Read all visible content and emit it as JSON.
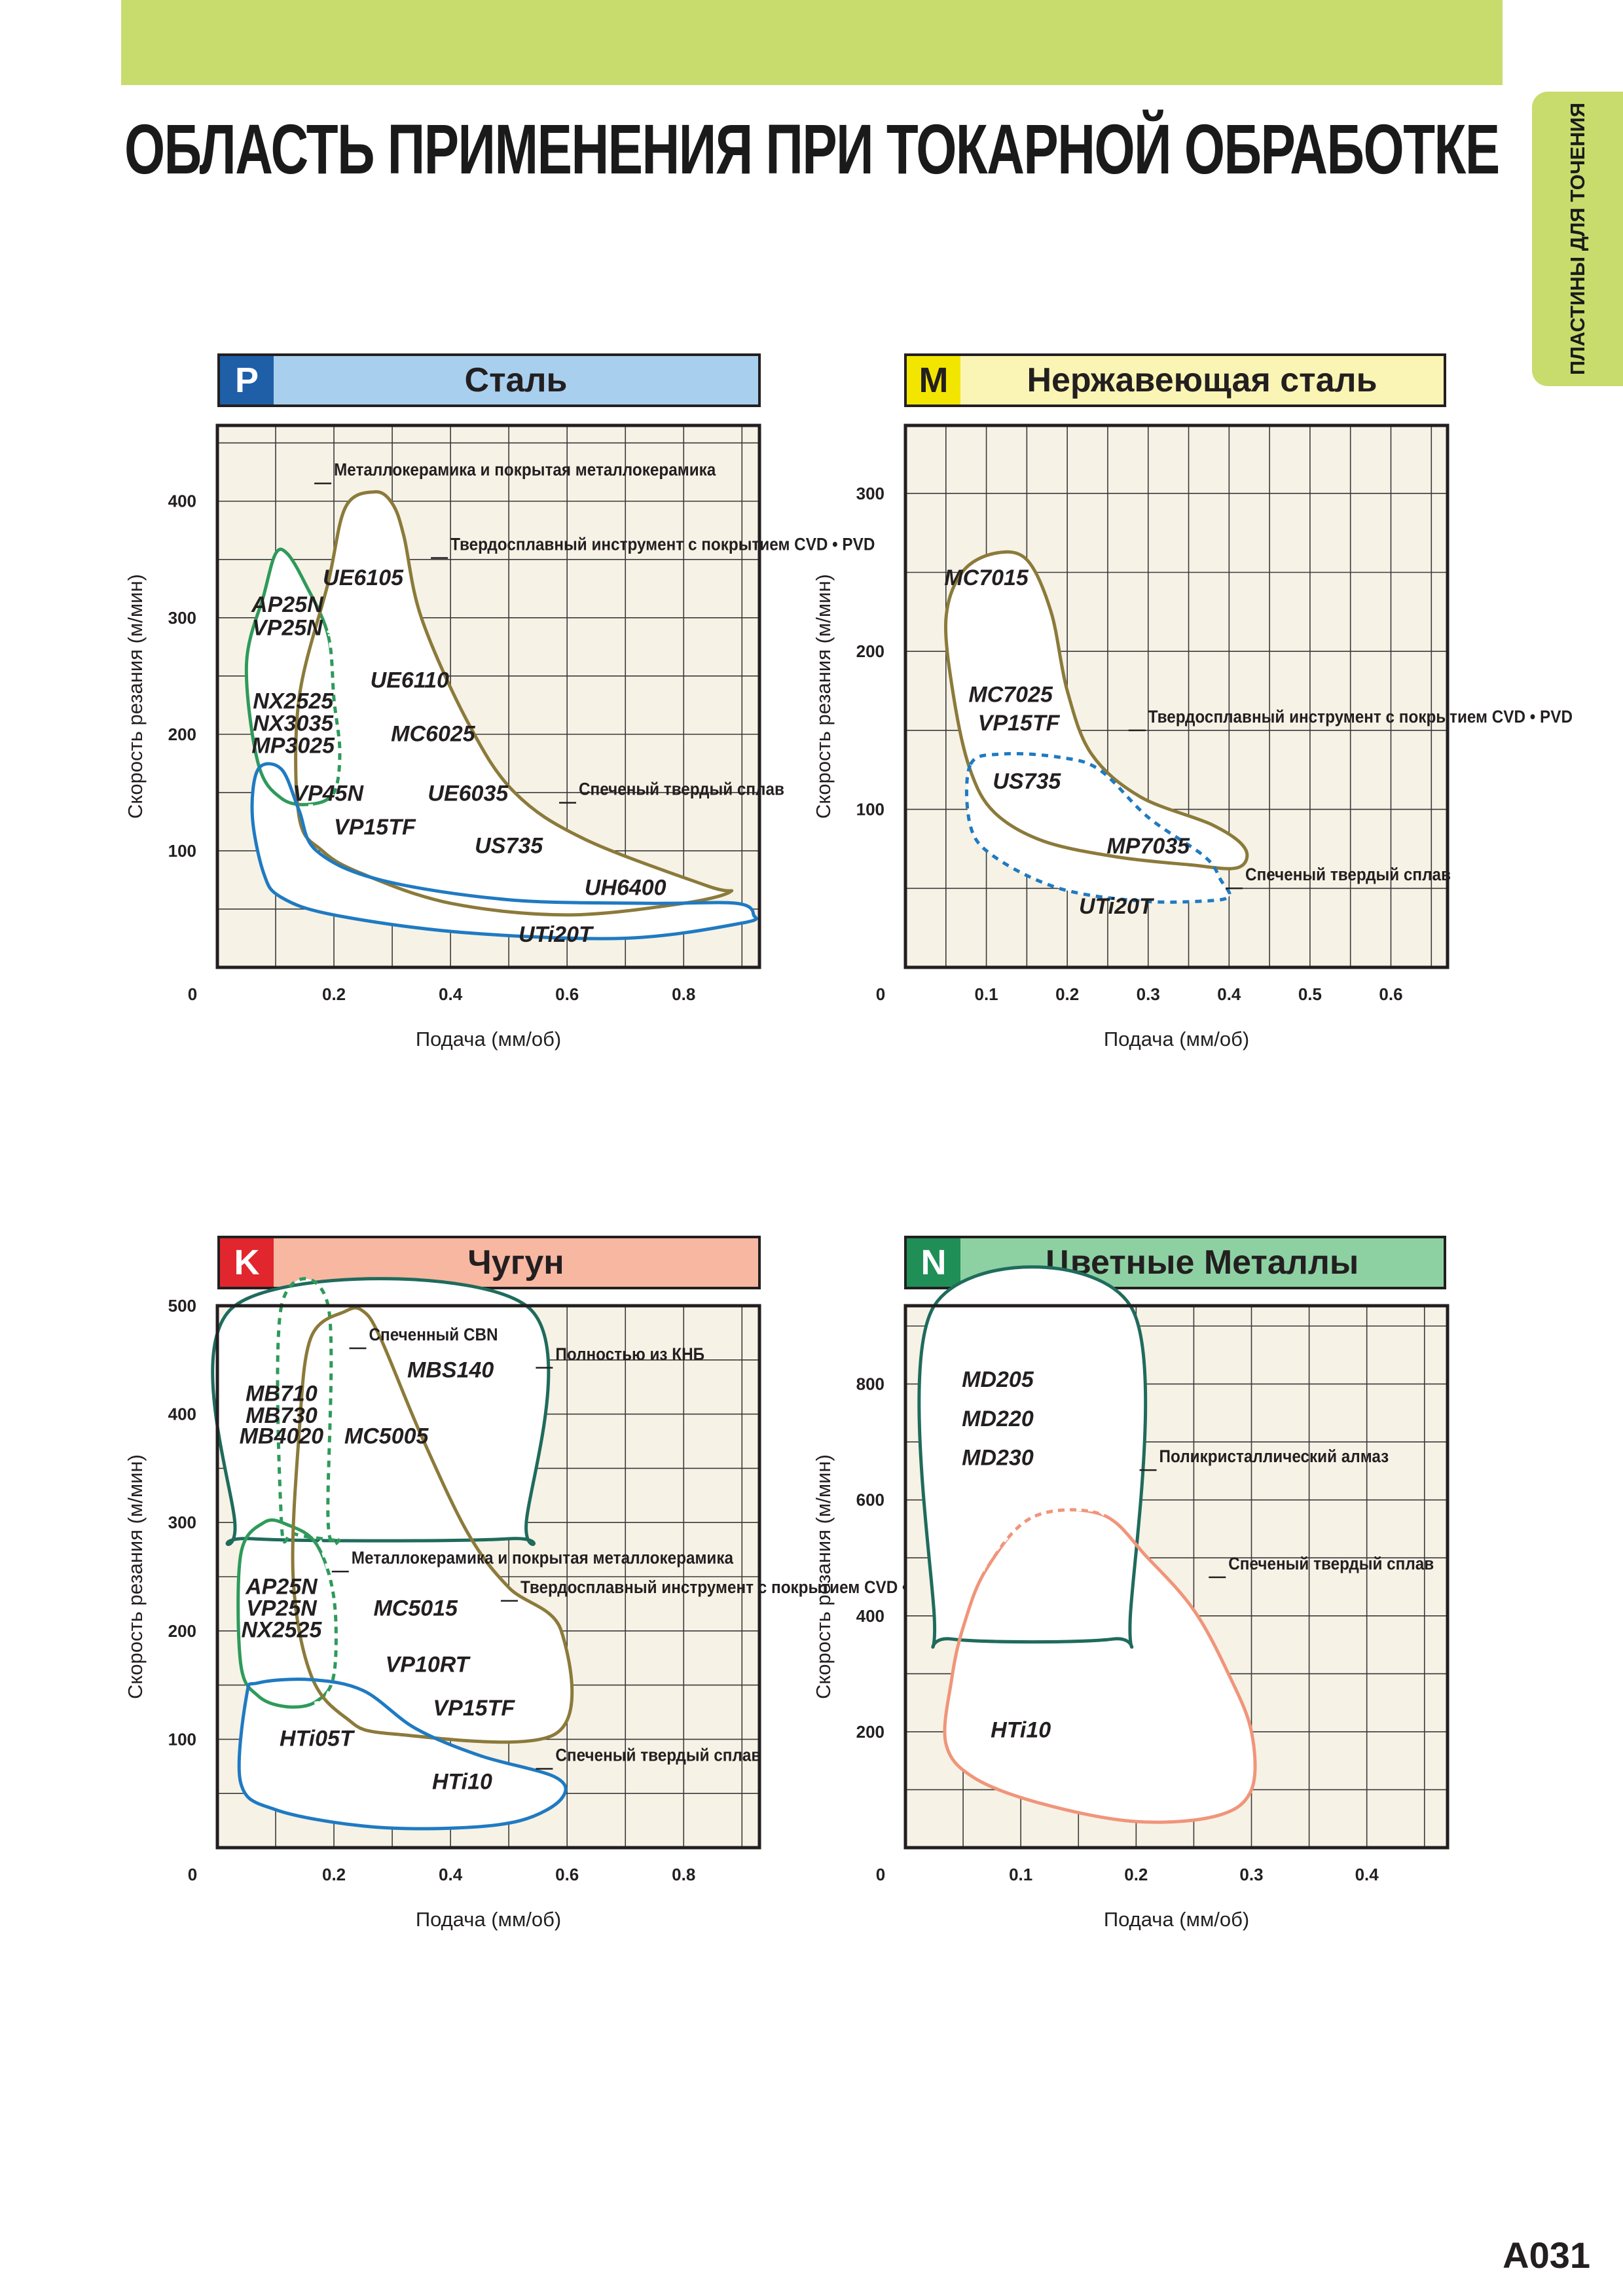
{
  "page": {
    "title": "ОБЛАСТЬ ПРИМЕНЕНИЯ ПРИ ТОКАРНОЙ ОБРАБОТКЕ",
    "side_tab": "ПЛАСТИНЫ ДЛЯ ТОЧЕНИЯ",
    "page_number": "A031",
    "accent_color": "#c8dc6e"
  },
  "chart_data": [
    {
      "id": "P",
      "type": "area",
      "code": "P",
      "code_color": "#1f5fa8",
      "header_color": "#a9cfee",
      "title": "Сталь",
      "xlabel": "Подача (мм/об)",
      "ylabel": "Скорость резания (м/мин)",
      "xlim": [
        0,
        0.93
      ],
      "ylim": [
        0,
        465
      ],
      "x_ticks": [
        "0",
        "0.2",
        "0.4",
        "0.6",
        "0.8"
      ],
      "y_ticks": [
        "100",
        "200",
        "300",
        "400"
      ],
      "x_tick_values": [
        0,
        0.2,
        0.4,
        0.6,
        0.8
      ],
      "y_tick_values": [
        100,
        200,
        300,
        400
      ],
      "grid": true,
      "regions": [
        {
          "name": "Металлокерамика и покрытая металлокерамика",
          "color": "#2e9a5a",
          "points": [
            [
              0.08,
              320
            ],
            [
              0.05,
              260
            ],
            [
              0.07,
              175
            ],
            [
              0.11,
              145
            ],
            [
              0.16,
              140
            ],
            [
              0.2,
              150
            ],
            [
              0.21,
              185
            ],
            [
              0.2,
              230
            ],
            [
              0.19,
              285
            ],
            [
              0.15,
              330
            ],
            [
              0.12,
              355
            ],
            [
              0.1,
              355
            ]
          ],
          "solid_until": 0.15
        },
        {
          "name": "Твердосплавный инструмент с покрытием CVD • PVD",
          "color": "#8b7a3a",
          "points": [
            [
              0.27,
              408
            ],
            [
              0.22,
              395
            ],
            [
              0.19,
              330
            ],
            [
              0.14,
              230
            ],
            [
              0.14,
              130
            ],
            [
              0.18,
              100
            ],
            [
              0.25,
              80
            ],
            [
              0.4,
              55
            ],
            [
              0.6,
              45
            ],
            [
              0.8,
              55
            ],
            [
              0.88,
              65
            ],
            [
              0.84,
              70
            ],
            [
              0.63,
              110
            ],
            [
              0.51,
              150
            ],
            [
              0.43,
              210
            ],
            [
              0.35,
              300
            ],
            [
              0.32,
              370
            ],
            [
              0.3,
              398
            ]
          ]
        },
        {
          "name": "Спеченый твердый сплав",
          "color": "#1f7ac2",
          "points": [
            [
              0.06,
              130
            ],
            [
              0.08,
              80
            ],
            [
              0.11,
              60
            ],
            [
              0.2,
              45
            ],
            [
              0.42,
              30
            ],
            [
              0.7,
              25
            ],
            [
              0.9,
              38
            ],
            [
              0.92,
              45
            ],
            [
              0.89,
              55
            ],
            [
              0.74,
              55
            ],
            [
              0.5,
              58
            ],
            [
              0.28,
              75
            ],
            [
              0.17,
              100
            ],
            [
              0.14,
              135
            ],
            [
              0.11,
              170
            ],
            [
              0.07,
              170
            ]
          ]
        }
      ],
      "labels": [
        {
          "text": "UE6105",
          "x": 0.25,
          "y": 328
        },
        {
          "text": "AP25N",
          "x": 0.12,
          "y": 305
        },
        {
          "text": "VP25N",
          "x": 0.12,
          "y": 285
        },
        {
          "text": "UE6110",
          "x": 0.33,
          "y": 240
        },
        {
          "text": "NX2525",
          "x": 0.13,
          "y": 222
        },
        {
          "text": "NX3035",
          "x": 0.13,
          "y": 203
        },
        {
          "text": "MP3025",
          "x": 0.13,
          "y": 184
        },
        {
          "text": "MC6025",
          "x": 0.37,
          "y": 194
        },
        {
          "text": "VP45N",
          "x": 0.19,
          "y": 143
        },
        {
          "text": "UE6035",
          "x": 0.43,
          "y": 143
        },
        {
          "text": "VP15TF",
          "x": 0.27,
          "y": 114
        },
        {
          "text": "US735",
          "x": 0.5,
          "y": 98
        },
        {
          "text": "UH6400",
          "x": 0.7,
          "y": 62
        },
        {
          "text": "UTi20T",
          "x": 0.58,
          "y": 22
        }
      ],
      "annotations": [
        {
          "text": "Металлокерамика и покрытая металлокерамика",
          "x": 0.2,
          "y": 422
        },
        {
          "text": "Твердосплавный инструмент с покрытием CVD • PVD",
          "x": 0.4,
          "y": 358
        },
        {
          "text": "Спеченый твердый сплав",
          "x": 0.62,
          "y": 148
        }
      ]
    },
    {
      "id": "M",
      "type": "area",
      "code": "M",
      "code_color": "#f2e600",
      "header_color": "#fbf5b5",
      "title": "Нержавеющая сталь",
      "xlabel": "Подача (мм/об)",
      "ylabel": "Скорость резания (м/мин)",
      "xlim": [
        0,
        0.67
      ],
      "ylim": [
        0,
        343
      ],
      "x_ticks": [
        "0",
        "0.1",
        "0.2",
        "0.3",
        "0.4",
        "0.5",
        "0.6"
      ],
      "y_ticks": [
        "100",
        "200",
        "300"
      ],
      "x_tick_values": [
        0,
        0.1,
        0.2,
        0.3,
        0.4,
        0.5,
        0.6
      ],
      "y_tick_values": [
        100,
        200,
        300
      ],
      "grid": true,
      "regions": [
        {
          "name": "Твердосплавный инструмент с покрытием CVD • PVD",
          "color": "#8b7a3a",
          "points": [
            [
              0.11,
              262
            ],
            [
              0.07,
              250
            ],
            [
              0.05,
              220
            ],
            [
              0.06,
              170
            ],
            [
              0.08,
              125
            ],
            [
              0.11,
              98
            ],
            [
              0.17,
              80
            ],
            [
              0.26,
              70
            ],
            [
              0.35,
              65
            ],
            [
              0.41,
              63
            ],
            [
              0.42,
              75
            ],
            [
              0.38,
              90
            ],
            [
              0.29,
              108
            ],
            [
              0.23,
              135
            ],
            [
              0.2,
              175
            ],
            [
              0.18,
              225
            ],
            [
              0.15,
              258
            ]
          ]
        },
        {
          "name": "Спеченый твердый сплав",
          "color": "#1f7ac2",
          "points": [
            [
              0.08,
              128
            ],
            [
              0.08,
              90
            ],
            [
              0.11,
              70
            ],
            [
              0.19,
              50
            ],
            [
              0.29,
              42
            ],
            [
              0.37,
              42
            ],
            [
              0.4,
              45
            ],
            [
              0.39,
              55
            ],
            [
              0.37,
              70
            ],
            [
              0.3,
              95
            ],
            [
              0.24,
              125
            ],
            [
              0.19,
              133
            ],
            [
              0.12,
              135
            ]
          ],
          "dashed": true
        }
      ],
      "labels": [
        {
          "text": "MC7015",
          "x": 0.1,
          "y": 242
        },
        {
          "text": "MC7025",
          "x": 0.13,
          "y": 168
        },
        {
          "text": "VP15TF",
          "x": 0.14,
          "y": 150
        },
        {
          "text": "US735",
          "x": 0.15,
          "y": 113
        },
        {
          "text": "MP7035",
          "x": 0.3,
          "y": 72
        },
        {
          "text": "UTi20T",
          "x": 0.26,
          "y": 34
        }
      ],
      "annotations": [
        {
          "text": "Твердосплавный инструмент с покрытием CVD • PVD",
          "x": 0.3,
          "y": 155
        },
        {
          "text": "Спеченый твердый сплав",
          "x": 0.42,
          "y": 55
        }
      ]
    },
    {
      "id": "K",
      "type": "area",
      "code": "K",
      "code_color": "#e1262d",
      "header_color": "#f7b7a1",
      "title": "Чугун",
      "xlabel": "Подача (мм/об)",
      "ylabel": "Скорость резания (м/мин)",
      "xlim": [
        0,
        0.93
      ],
      "ylim": [
        0,
        500
      ],
      "x_ticks": [
        "0",
        "0.2",
        "0.4",
        "0.6",
        "0.8"
      ],
      "y_ticks": [
        "100",
        "200",
        "300",
        "400",
        "500"
      ],
      "x_tick_values": [
        0,
        0.2,
        0.4,
        0.6,
        0.8
      ],
      "y_tick_values": [
        100,
        200,
        300,
        400,
        500
      ],
      "grid": true,
      "regions": [
        {
          "name": "Полностью из КНБ",
          "color": "#1f6b5c",
          "points": [
            [
              0.03,
              500
            ],
            [
              0.03,
              300
            ],
            [
              0.06,
              285
            ],
            [
              0.5,
              285
            ],
            [
              0.53,
              300
            ],
            [
              0.53,
              500
            ]
          ]
        },
        {
          "name": "Спеченный CBN",
          "color": "#2e9a5a",
          "points": [
            [
              0.11,
              500
            ],
            [
              0.11,
              300
            ],
            [
              0.13,
              290
            ],
            [
              0.18,
              285
            ],
            [
              0.21,
              285
            ],
            [
              0.19,
              300
            ],
            [
              0.19,
              500
            ]
          ],
          "dashed": true
        },
        {
          "name": "Металлокерамика и покрытая металлокерамика",
          "color": "#2e9a5a",
          "points": [
            [
              0.08,
              300
            ],
            [
              0.04,
              270
            ],
            [
              0.04,
              170
            ],
            [
              0.07,
              140
            ],
            [
              0.12,
              130
            ],
            [
              0.17,
              135
            ],
            [
              0.2,
              160
            ],
            [
              0.2,
              230
            ],
            [
              0.17,
              280
            ],
            [
              0.12,
              298
            ]
          ],
          "solid_until": 0.13
        },
        {
          "name": "Твердосплавный инструмент с покрытием CVD • PVD",
          "color": "#8b7a3a",
          "points": [
            [
              0.22,
              495
            ],
            [
              0.16,
              470
            ],
            [
              0.14,
              380
            ],
            [
              0.13,
              250
            ],
            [
              0.16,
              160
            ],
            [
              0.22,
              120
            ],
            [
              0.3,
              105
            ],
            [
              0.58,
              105
            ],
            [
              0.59,
              200
            ],
            [
              0.5,
              240
            ],
            [
              0.43,
              290
            ],
            [
              0.35,
              380
            ],
            [
              0.28,
              470
            ],
            [
              0.25,
              495
            ]
          ]
        },
        {
          "name": "Спеченый твердый сплав",
          "color": "#1f7ac2",
          "points": [
            [
              0.05,
              140
            ],
            [
              0.04,
              60
            ],
            [
              0.1,
              35
            ],
            [
              0.25,
              20
            ],
            [
              0.4,
              18
            ],
            [
              0.52,
              25
            ],
            [
              0.59,
              45
            ],
            [
              0.58,
              65
            ],
            [
              0.45,
              85
            ],
            [
              0.34,
              110
            ],
            [
              0.25,
              145
            ],
            [
              0.16,
              155
            ],
            [
              0.07,
              152
            ]
          ]
        }
      ],
      "labels": [
        {
          "text": "MBS140",
          "x": 0.4,
          "y": 434
        },
        {
          "text": "MB710",
          "x": 0.11,
          "y": 412
        },
        {
          "text": "MB730",
          "x": 0.11,
          "y": 392
        },
        {
          "text": "MB4020",
          "x": 0.11,
          "y": 373
        },
        {
          "text": "MC5005",
          "x": 0.29,
          "y": 373
        },
        {
          "text": "AP25N",
          "x": 0.11,
          "y": 234
        },
        {
          "text": "VP25N",
          "x": 0.11,
          "y": 214
        },
        {
          "text": "NX2525",
          "x": 0.11,
          "y": 194
        },
        {
          "text": "MC5015",
          "x": 0.34,
          "y": 214
        },
        {
          "text": "VP10RT",
          "x": 0.36,
          "y": 162
        },
        {
          "text": "VP15TF",
          "x": 0.44,
          "y": 122
        },
        {
          "text": "HTi05T",
          "x": 0.17,
          "y": 94
        },
        {
          "text": "HTi10",
          "x": 0.42,
          "y": 54
        }
      ],
      "annotations": [
        {
          "text": "Спеченный CBN",
          "x": 0.26,
          "y": 468
        },
        {
          "text": "Полностью из КНБ",
          "x": 0.58,
          "y": 450
        },
        {
          "text": "Металлокерамика и покрытая металлокерамика",
          "x": 0.23,
          "y": 262
        },
        {
          "text": "Твердосплавный инструмент с покрытием CVD • PVD",
          "x": 0.52,
          "y": 235
        },
        {
          "text": "Спеченый твердый сплав",
          "x": 0.58,
          "y": 80
        }
      ]
    },
    {
      "id": "N",
      "type": "area",
      "code": "N",
      "code_color": "#1f8f57",
      "header_color": "#8dd1a3",
      "title": "Цветные Металлы",
      "xlabel": "Подача (мм/об)",
      "ylabel": "Скорость резания (м/мин)",
      "xlim": [
        0,
        0.47
      ],
      "ylim": [
        0,
        935
      ],
      "x_ticks": [
        "0",
        "0.1",
        "0.2",
        "0.3",
        "0.4"
      ],
      "y_ticks": [
        "200",
        "400",
        "600",
        "800"
      ],
      "x_tick_values": [
        0,
        0.1,
        0.2,
        0.3,
        0.4
      ],
      "y_tick_values": [
        200,
        400,
        600,
        800
      ],
      "grid": true,
      "regions": [
        {
          "name": "Поликристаллический алмаз",
          "color": "#1f6b5c",
          "points": [
            [
              0.025,
              935
            ],
            [
              0.025,
              400
            ],
            [
              0.04,
              360
            ],
            [
              0.18,
              360
            ],
            [
              0.195,
              400
            ],
            [
              0.195,
              935
            ]
          ]
        },
        {
          "name": "Спеченый твердый сплав",
          "color": "#f0957a",
          "points": [
            [
              0.05,
              380
            ],
            [
              0.04,
              290
            ],
            [
              0.035,
              180
            ],
            [
              0.06,
              120
            ],
            [
              0.12,
              75
            ],
            [
              0.2,
              45
            ],
            [
              0.27,
              55
            ],
            [
              0.3,
              100
            ],
            [
              0.3,
              200
            ],
            [
              0.28,
              300
            ],
            [
              0.25,
              410
            ],
            [
              0.21,
              500
            ],
            [
              0.17,
              575
            ],
            [
              0.11,
              570
            ],
            [
              0.07,
              480
            ]
          ],
          "dashed_segment": [
            0.07,
            0.2
          ]
        }
      ],
      "labels": [
        {
          "text": "MD205",
          "x": 0.08,
          "y": 795
        },
        {
          "text": "MD220",
          "x": 0.08,
          "y": 727
        },
        {
          "text": "MD230",
          "x": 0.08,
          "y": 660
        },
        {
          "text": "HTi10",
          "x": 0.1,
          "y": 190
        }
      ],
      "annotations": [
        {
          "text": "Поликристаллический алмаз",
          "x": 0.22,
          "y": 665
        },
        {
          "text": "Спеченый твердый сплав",
          "x": 0.28,
          "y": 480
        }
      ]
    }
  ]
}
